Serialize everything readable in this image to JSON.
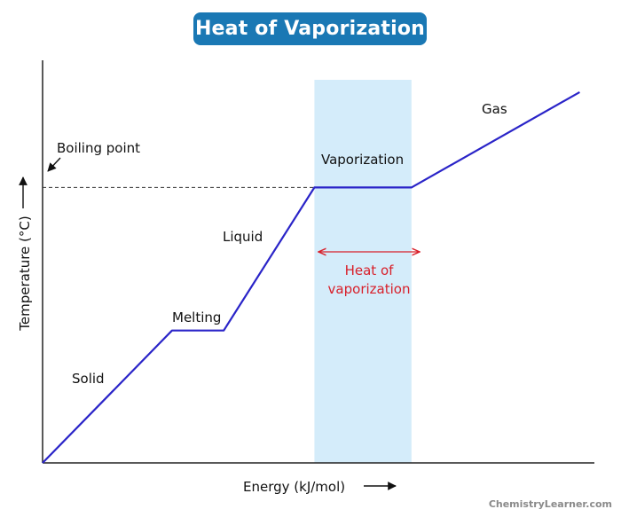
{
  "title": "Heat of Vaporization",
  "watermark": "ChemistryLearner.com",
  "colors": {
    "title_bg": "#1a78b4",
    "curve": "#2a24c8",
    "highlight": "#d4ecfa",
    "annotation_red": "#d8202a",
    "axis": "#222222"
  },
  "axes": {
    "xlabel": "Energy (kJ/mol)",
    "ylabel": "Temperature (°C)"
  },
  "annotations": {
    "boiling_point": "Boiling point",
    "solid": "Solid",
    "melting": "Melting",
    "liquid": "Liquid",
    "vaporization": "Vaporization",
    "gas": "Gas",
    "heat_of_vaporization_line1": "Heat of",
    "heat_of_vaporization_line2": "vaporization"
  },
  "chart_data": {
    "type": "line",
    "title": "Heat of Vaporization",
    "xlabel": "Energy (kJ/mol)",
    "ylabel": "Temperature (°C)",
    "units": "relative (no numeric ticks shown)",
    "x": [
      0,
      20,
      28,
      42,
      57,
      83
    ],
    "y": [
      0,
      25,
      25,
      52,
      52,
      70
    ],
    "segments": [
      "Solid",
      "Melting",
      "Liquid",
      "Vaporization",
      "Gas"
    ],
    "highlight_region": {
      "x_range": [
        42,
        57
      ],
      "label": "Heat of vaporization"
    },
    "reference_line": {
      "y": 52,
      "label": "Boiling point",
      "style": "dashed"
    }
  }
}
